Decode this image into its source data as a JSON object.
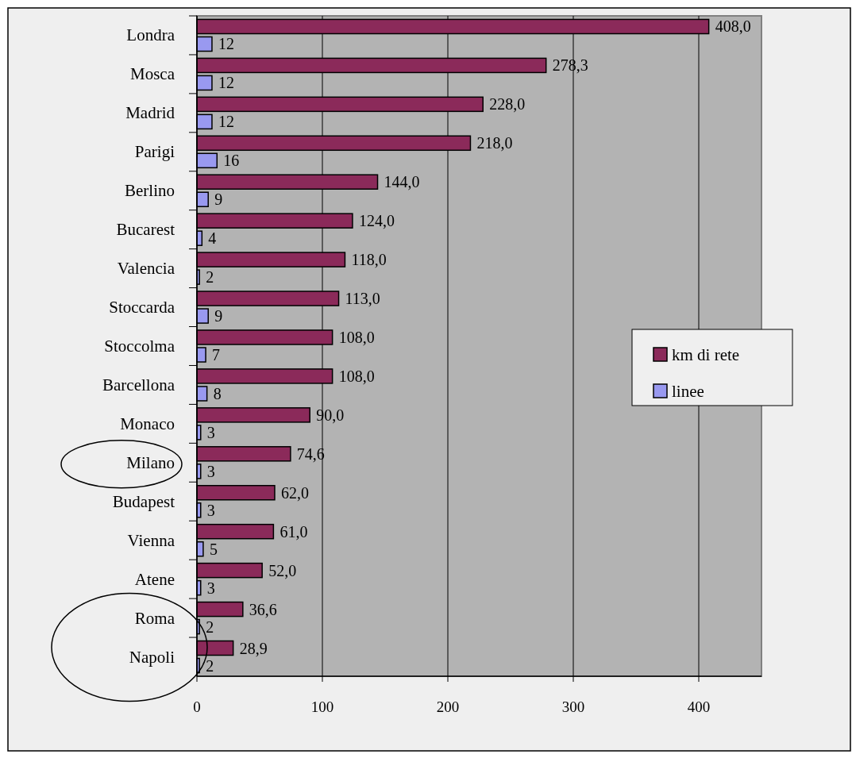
{
  "chart_data": {
    "type": "bar",
    "orientation": "horizontal",
    "categories": [
      "Londra",
      "Mosca",
      "Madrid",
      "Parigi",
      "Berlino",
      "Bucarest",
      "Valencia",
      "Stoccarda",
      "Stoccolma",
      "Barcellona",
      "Monaco",
      "Milano",
      "Budapest",
      "Vienna",
      "Atene",
      "Roma",
      "Napoli"
    ],
    "series": [
      {
        "name": "km di rete",
        "color": "#8b2a5a",
        "values": [
          408.0,
          278.3,
          228.0,
          218.0,
          144.0,
          124.0,
          118.0,
          113.0,
          108.0,
          108.0,
          90.0,
          74.6,
          62.0,
          61.0,
          52.0,
          36.6,
          28.9
        ],
        "value_labels": [
          "408,0",
          "278,3",
          "228,0",
          "218,0",
          "144,0",
          "124,0",
          "118,0",
          "113,0",
          "108,0",
          "108,0",
          "90,0",
          "74,6",
          "62,0",
          "61,0",
          "52,0",
          "36,6",
          "28,9"
        ]
      },
      {
        "name": "linee",
        "color": "#9999f0",
        "values": [
          12,
          12,
          12,
          16,
          9,
          4,
          2,
          9,
          7,
          8,
          3,
          3,
          3,
          5,
          3,
          2,
          2
        ],
        "value_labels": [
          "12",
          "12",
          "12",
          "16",
          "9",
          "4",
          "2",
          "9",
          "7",
          "8",
          "3",
          "3",
          "3",
          "5",
          "3",
          "2",
          "2"
        ]
      }
    ],
    "xlim": [
      0,
      450
    ],
    "xticks": [
      0,
      100,
      200,
      300,
      400
    ],
    "grid": "x",
    "legend": "right"
  }
}
